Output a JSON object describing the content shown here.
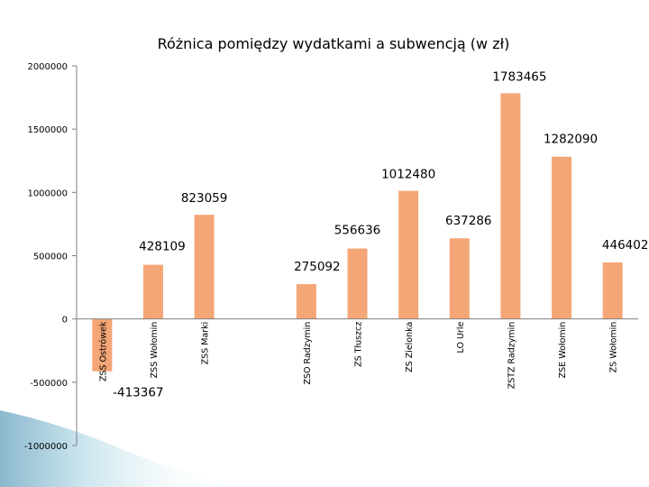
{
  "chart_data": {
    "type": "bar",
    "title": "Różnica pomiędzy wydatkami a subwencją (w zł)",
    "xlabel": "",
    "ylabel": "",
    "ylim": [
      -1000000,
      2000000
    ],
    "y_ticks": [
      2000000,
      1500000,
      1000000,
      500000,
      0,
      -500000,
      -1000000
    ],
    "y_tick_labels": [
      "2000000",
      "1500000",
      "1000000",
      "500000",
      "0",
      "-500000",
      "-1000000"
    ],
    "categories": [
      "ZSS Ostrówek",
      "ZSS Wołomin",
      "ZSS Marki",
      "",
      "ZSO Radzymin",
      "ZS Tłuszcz",
      "ZS Zielonka",
      "LO Urle",
      "ZSTZ Radzymin",
      "ZSE Wołomin",
      "ZS Wołomin"
    ],
    "values": [
      -413367,
      428109,
      823059,
      null,
      275092,
      556636,
      1012480,
      637286,
      1783465,
      1282090,
      446402
    ],
    "data_labels": [
      "-413367",
      "428109",
      "823059",
      "",
      "275092",
      "556636",
      "1012480",
      "637286",
      "1783465",
      "1282090",
      "446402"
    ],
    "bar_color": "#F4A676",
    "grid": false,
    "legend": "none"
  }
}
